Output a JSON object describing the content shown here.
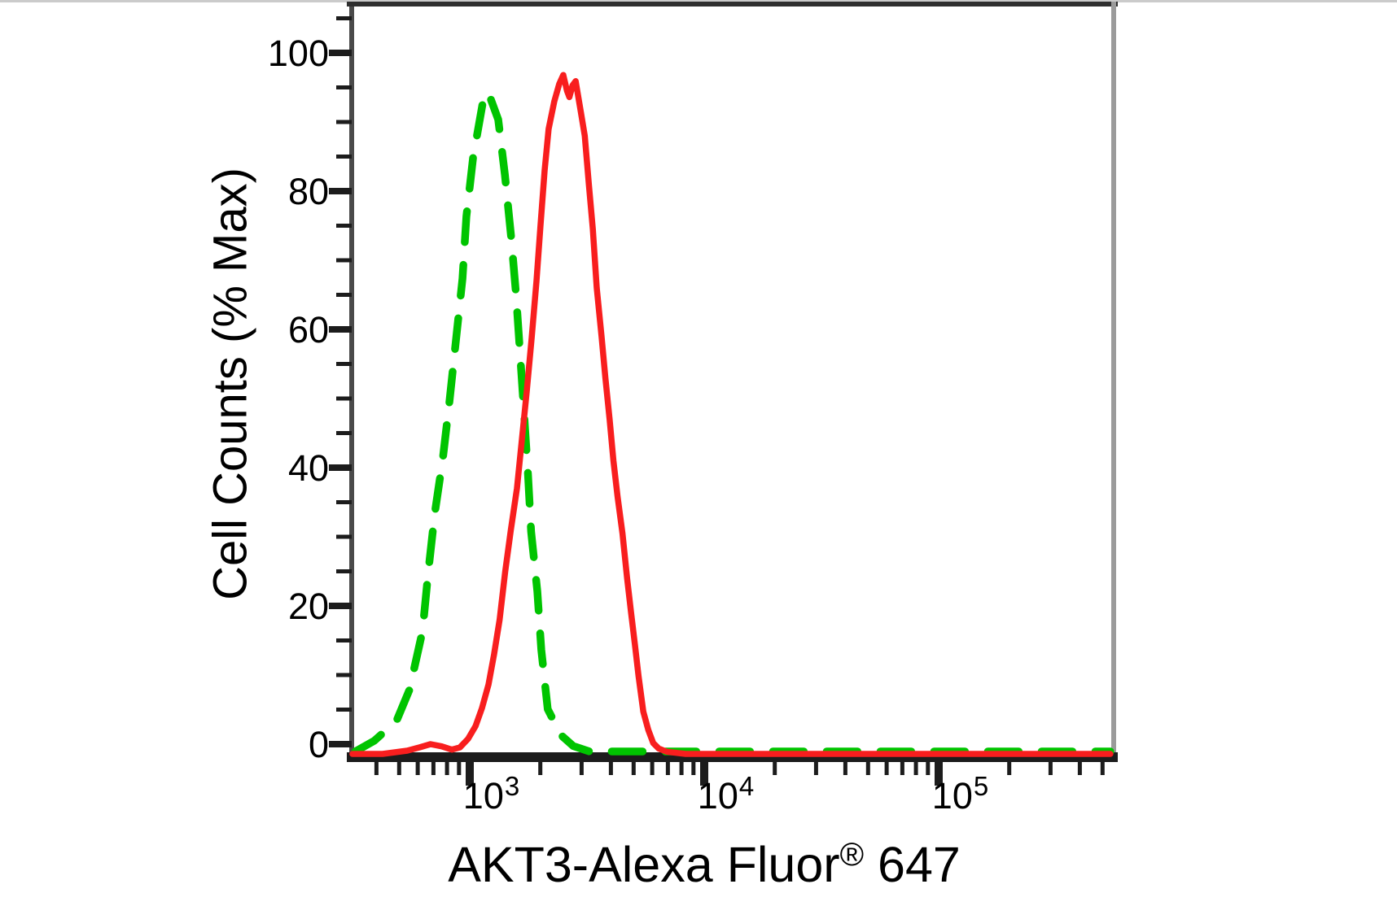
{
  "chart_data": {
    "type": "line",
    "title": "",
    "xlabel": "AKT3-Alexa Fluor® 647",
    "xlabel_parts": {
      "main": "AKT3-Alexa Fluor",
      "registered": "®",
      "suffix": " 647"
    },
    "ylabel": "Cell Counts (% Max)",
    "x_scale": "log",
    "xlim": [
      316,
      550000
    ],
    "ylim": [
      0,
      100
    ],
    "grid": false,
    "legend": "none",
    "ytick_values": [
      0,
      20,
      40,
      60,
      80,
      100
    ],
    "ytick_labels": [
      "0",
      "20",
      "40",
      "60",
      "80",
      "100"
    ],
    "y_minor_step": 5,
    "xtick_values": [
      1000,
      10000,
      100000
    ],
    "xtick_labels": [
      {
        "base": "10",
        "exp": "3"
      },
      {
        "base": "10",
        "exp": "4"
      },
      {
        "base": "10",
        "exp": "5"
      }
    ],
    "x_minor_ticks": "2-9 per decade",
    "colors": {
      "red_solid": "#f81e1e",
      "green_dashed": "#00c400",
      "axis": "#1c1c1c",
      "left_spine": "#4a4a4a",
      "right_spine": "#9b9b9b",
      "top_spine": "#2f2f2f"
    },
    "series": [
      {
        "name": "green-dashed",
        "style": "dashed",
        "color": "#00c400",
        "points": [
          [
            325,
            0
          ],
          [
            392,
            1
          ],
          [
            487,
            3
          ],
          [
            553,
            7.5
          ],
          [
            629,
            16
          ],
          [
            665,
            24.5
          ],
          [
            709,
            33
          ],
          [
            768,
            41
          ],
          [
            818,
            49
          ],
          [
            873,
            58
          ],
          [
            931,
            67
          ],
          [
            968,
            76
          ],
          [
            1033,
            84.5
          ],
          [
            1137,
            92.5
          ],
          [
            1193,
            94
          ],
          [
            1228,
            93
          ],
          [
            1323,
            90
          ],
          [
            1412,
            82
          ],
          [
            1506,
            72.6
          ],
          [
            1577,
            64.5
          ],
          [
            1640,
            56
          ],
          [
            1705,
            47.6
          ],
          [
            1772,
            38.6
          ],
          [
            1827,
            30.4
          ],
          [
            1941,
            21.8
          ],
          [
            2020,
            13.3
          ],
          [
            2151,
            4.7
          ],
          [
            2452,
            1.5
          ],
          [
            2766,
            0.5
          ],
          [
            3240,
            0
          ],
          [
            10000,
            0
          ],
          [
            100000,
            0
          ],
          [
            540000,
            0
          ]
        ]
      },
      {
        "name": "red-solid",
        "style": "solid",
        "color": "#f81e1e",
        "points": [
          [
            316,
            0
          ],
          [
            425,
            0
          ],
          [
            541,
            0.3
          ],
          [
            610,
            0.6
          ],
          [
            680,
            0.9
          ],
          [
            759,
            0.7
          ],
          [
            838,
            0.4
          ],
          [
            908,
            0.6
          ],
          [
            984,
            1.4
          ],
          [
            1058,
            2.6
          ],
          [
            1127,
            5.2
          ],
          [
            1202,
            8.6
          ],
          [
            1270,
            13
          ],
          [
            1341,
            18
          ],
          [
            1417,
            25
          ],
          [
            1497,
            31
          ],
          [
            1590,
            37
          ],
          [
            1668,
            44
          ],
          [
            1750,
            51
          ],
          [
            1838,
            58.8
          ],
          [
            1926,
            67
          ],
          [
            2004,
            75
          ],
          [
            2086,
            83
          ],
          [
            2170,
            89
          ],
          [
            2295,
            93
          ],
          [
            2407,
            95.5
          ],
          [
            2506,
            96.8
          ],
          [
            2600,
            94.5
          ],
          [
            2660,
            93.6
          ],
          [
            2745,
            95.3
          ],
          [
            2830,
            95.9
          ],
          [
            2975,
            91.5
          ],
          [
            3095,
            88
          ],
          [
            3220,
            81
          ],
          [
            3350,
            74.5
          ],
          [
            3480,
            66
          ],
          [
            3650,
            59
          ],
          [
            3790,
            53
          ],
          [
            3950,
            47
          ],
          [
            4100,
            41
          ],
          [
            4270,
            35.8
          ],
          [
            4480,
            30.5
          ],
          [
            4690,
            24
          ],
          [
            4870,
            19.2
          ],
          [
            5060,
            14.5
          ],
          [
            5250,
            9.8
          ],
          [
            5500,
            4.7
          ],
          [
            5780,
            2.2
          ],
          [
            6060,
            1
          ],
          [
            6400,
            0.5
          ],
          [
            6920,
            0.2
          ],
          [
            8330,
            0
          ],
          [
            20000,
            0
          ],
          [
            100000,
            0
          ],
          [
            540000,
            0
          ]
        ]
      }
    ]
  }
}
